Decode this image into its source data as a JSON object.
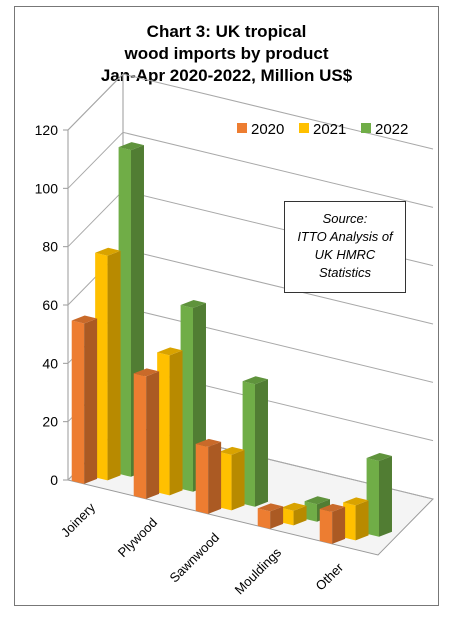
{
  "title_lines": [
    "Chart 3: UK tropical",
    "wood imports by product",
    "Jan-Apr 2020-2022, Million US$"
  ],
  "source_lines": [
    "Source:",
    "ITTO Analysis of",
    "UK HMRC",
    "Statistics"
  ],
  "chart_data": {
    "type": "bar",
    "title": "Chart 3: UK tropical wood imports by product Jan-Apr 2020-2022, Million US$",
    "categories": [
      "Joinery",
      "Plywood",
      "Sawnwood",
      "Mouldings",
      "Other"
    ],
    "series": [
      {
        "name": "2020",
        "values": [
          55,
          42,
          23,
          6,
          11
        ],
        "color": "#ED7D31"
      },
      {
        "name": "2021",
        "values": [
          77,
          48,
          19,
          5,
          12
        ],
        "color": "#FFC000"
      },
      {
        "name": "2022",
        "values": [
          112,
          63,
          42,
          6,
          26
        ],
        "color": "#70AD47"
      }
    ],
    "yticks": [
      "0",
      "20",
      "40",
      "60",
      "80",
      "100",
      "120"
    ],
    "ylim": [
      0,
      120
    ],
    "grid": true,
    "legend": "top-right",
    "chart_style": "3d-clustered-column"
  }
}
